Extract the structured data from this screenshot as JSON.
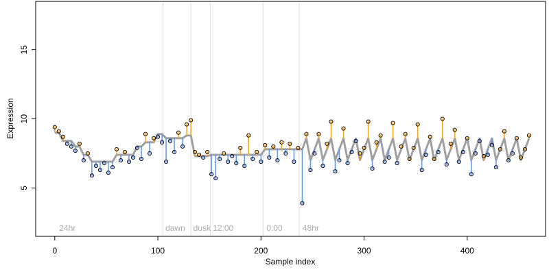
{
  "chart_data": {
    "type": "scatter",
    "xlabel": "Sample index",
    "ylabel": "Expression",
    "xlim": [
      -18.5,
      476
    ],
    "ylim": [
      1.5,
      18.5
    ],
    "xticks": [
      0,
      100,
      200,
      300,
      400
    ],
    "yticks": [
      5,
      10,
      15
    ],
    "above_color": "#f5a623",
    "below_color": "#6495ed",
    "fit_color": "#a0a0a0",
    "vlines": [
      105,
      132,
      151,
      202,
      237
    ],
    "annotations": [
      {
        "x": 3,
        "label": "24hr"
      },
      {
        "x": 106,
        "label": "dawn"
      },
      {
        "x": 133,
        "label": "dusk"
      },
      {
        "x": 152,
        "label": "12:00"
      },
      {
        "x": 204,
        "label": "0:00"
      },
      {
        "x": 239,
        "label": "48hr"
      }
    ],
    "x": [
      0,
      4,
      8,
      12,
      16,
      20,
      24,
      28,
      32,
      36,
      40,
      44,
      48,
      52,
      56,
      60,
      64,
      68,
      72,
      76,
      80,
      84,
      88,
      92,
      96,
      100,
      104,
      108,
      112,
      116,
      120,
      124,
      128,
      132,
      136,
      140,
      144,
      148,
      152,
      156,
      160,
      164,
      168,
      172,
      176,
      180,
      184,
      188,
      192,
      196,
      200,
      204,
      208,
      212,
      216,
      220,
      224,
      228,
      232,
      236,
      240,
      244,
      248,
      252,
      256,
      260,
      264,
      268,
      272,
      276,
      280,
      284,
      288,
      292,
      296,
      300,
      304,
      308,
      312,
      316,
      320,
      324,
      328,
      332,
      336,
      340,
      344,
      348,
      352,
      356,
      360,
      364,
      368,
      372,
      376,
      380,
      384,
      388,
      392,
      396,
      400,
      404,
      408,
      412,
      416,
      420,
      424,
      428,
      432,
      436,
      440,
      444,
      448,
      452,
      456,
      460
    ],
    "values": [
      9.4,
      9.1,
      8.7,
      8.2,
      8.0,
      7.7,
      8.2,
      7.0,
      7.5,
      5.9,
      6.6,
      6.3,
      6.8,
      6.1,
      6.5,
      7.8,
      7.0,
      7.6,
      6.9,
      7.2,
      7.9,
      7.1,
      8.9,
      7.5,
      8.6,
      8.7,
      8.3,
      6.9,
      8.4,
      7.6,
      9.0,
      8.0,
      9.6,
      9.9,
      7.6,
      7.4,
      7.2,
      7.6,
      6.0,
      5.7,
      7.1,
      7.5,
      6.9,
      7.3,
      6.8,
      7.9,
      6.6,
      8.8,
      7.1,
      7.6,
      6.9,
      8.1,
      7.2,
      8.0,
      7.0,
      8.3,
      7.5,
      8.2,
      6.9,
      7.9,
      3.9,
      8.9,
      6.3,
      7.5,
      8.9,
      6.6,
      8.2,
      9.8,
      6.2,
      7.0,
      9.3,
      6.8,
      7.6,
      8.4,
      7.5,
      7.9,
      9.8,
      6.4,
      8.3,
      8.8,
      6.9,
      7.2,
      9.7,
      6.8,
      8.0,
      8.9,
      7.1,
      7.9,
      9.6,
      6.3,
      7.4,
      8.7,
      7.1,
      7.6,
      10.0,
      6.7,
      8.2,
      9.2,
      6.9,
      7.6,
      8.6,
      6.0,
      7.5,
      8.4,
      7.3,
      7.4,
      8.1,
      6.5,
      7.8,
      9.1,
      7.0,
      7.5,
      8.6,
      7.2,
      7.8,
      8.8
    ],
    "fit": [
      9.0,
      9.0,
      8.4,
      8.4,
      8.4,
      8.0,
      8.0,
      7.4,
      7.4,
      6.9,
      6.9,
      6.9,
      6.9,
      6.9,
      6.9,
      7.4,
      7.4,
      7.4,
      7.4,
      7.4,
      8.0,
      8.0,
      8.3,
      8.3,
      8.3,
      8.9,
      8.9,
      8.6,
      8.6,
      8.6,
      8.6,
      8.6,
      8.8,
      8.8,
      7.3,
      7.3,
      7.3,
      7.3,
      7.4,
      7.4,
      7.4,
      7.4,
      7.4,
      7.4,
      7.4,
      7.4,
      7.4,
      7.4,
      7.4,
      7.4,
      7.4,
      7.8,
      7.8,
      7.8,
      7.8,
      7.8,
      7.8,
      7.8,
      7.8,
      7.8,
      7.8,
      8.58,
      7.02,
      7.8,
      8.58,
      7.02,
      7.8,
      8.58,
      7.02,
      7.8,
      8.58,
      7.02,
      7.8,
      8.58,
      7.02,
      7.8,
      8.58,
      7.02,
      7.8,
      8.58,
      7.02,
      7.8,
      8.58,
      7.02,
      7.8,
      8.58,
      7.02,
      7.8,
      8.58,
      7.02,
      7.8,
      8.58,
      7.02,
      7.8,
      8.58,
      7.02,
      7.8,
      8.58,
      7.02,
      7.8,
      8.58,
      7.02,
      7.8,
      8.58,
      7.02,
      7.8,
      8.58,
      7.02,
      7.8,
      8.58,
      7.02,
      7.8,
      8.58,
      7.02,
      7.8,
      8.58
    ]
  }
}
